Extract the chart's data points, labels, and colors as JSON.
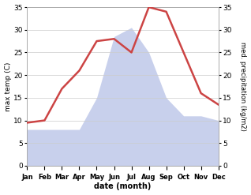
{
  "months": [
    "Jan",
    "Feb",
    "Mar",
    "Apr",
    "May",
    "Jun",
    "Jul",
    "Aug",
    "Sep",
    "Oct",
    "Nov",
    "Dec"
  ],
  "month_x": [
    1,
    2,
    3,
    4,
    5,
    6,
    7,
    8,
    9,
    10,
    11,
    12
  ],
  "temperature": [
    9.5,
    10.0,
    17.0,
    21.0,
    27.5,
    28.0,
    25.0,
    35.0,
    34.0,
    25.0,
    16.0,
    13.5
  ],
  "precipitation": [
    8.0,
    8.0,
    8.0,
    8.0,
    15.0,
    28.5,
    30.5,
    25.0,
    15.0,
    11.0,
    11.0,
    10.0
  ],
  "temp_color": "#cc4444",
  "precip_fill_color": "#c8d0ec",
  "ylim_temp": [
    0,
    35
  ],
  "ylim_precip": [
    0,
    35
  ],
  "ylabel_left": "max temp (C)",
  "ylabel_right": "med. precipitation (kg/m2)",
  "xlabel": "date (month)",
  "bg_color": "#ffffff",
  "axes_bg_color": "#ffffff",
  "temp_linewidth": 1.8,
  "grid_color": "#cccccc"
}
